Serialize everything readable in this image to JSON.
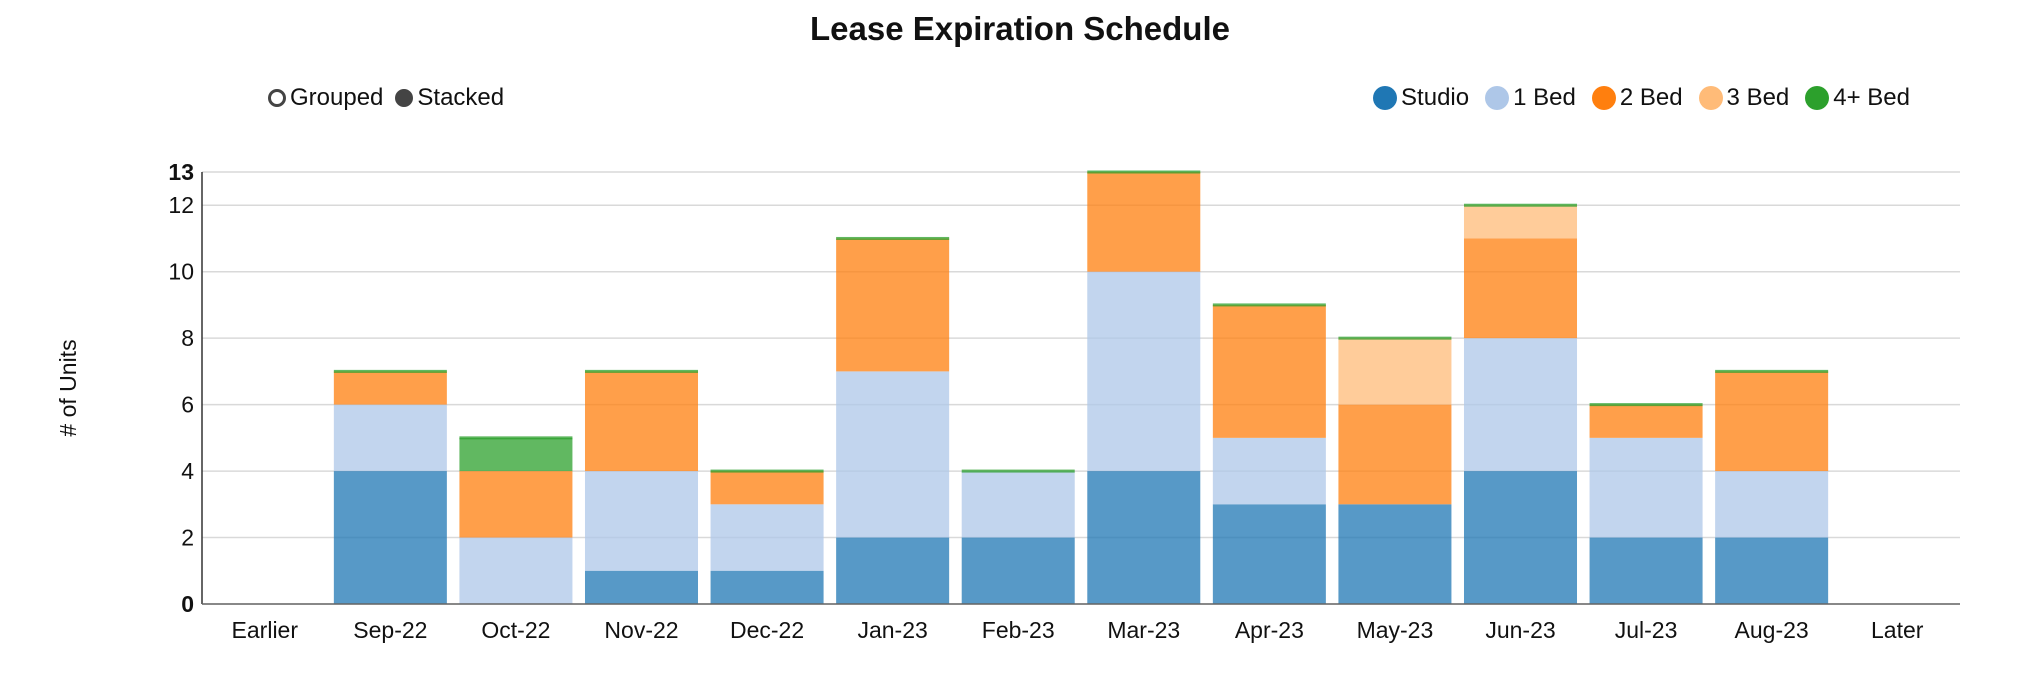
{
  "chart_data": {
    "type": "bar",
    "stacked": true,
    "title": "Lease Expiration Schedule",
    "xlabel": "",
    "ylabel": "# of Units",
    "ylim": [
      0,
      13
    ],
    "yticks": [
      0,
      2,
      4,
      6,
      8,
      10,
      12,
      13
    ],
    "grid": true,
    "legend_position": "top-right",
    "categories": [
      "Earlier",
      "Sep-22",
      "Oct-22",
      "Nov-22",
      "Dec-22",
      "Jan-23",
      "Feb-23",
      "Mar-23",
      "Apr-23",
      "May-23",
      "Jun-23",
      "Jul-23",
      "Aug-23",
      "Later"
    ],
    "series": [
      {
        "name": "Studio",
        "color": "#1f77b4",
        "values": [
          0,
          4,
          0,
          1,
          1,
          2,
          2,
          4,
          3,
          3,
          4,
          2,
          2,
          0
        ]
      },
      {
        "name": "1 Bed",
        "color": "#aec7e8",
        "values": [
          0,
          2,
          2,
          3,
          2,
          5,
          2,
          6,
          2,
          0,
          4,
          3,
          2,
          0
        ]
      },
      {
        "name": "2 Bed",
        "color": "#ff7f0e",
        "values": [
          0,
          1,
          2,
          3,
          1,
          4,
          0,
          3,
          4,
          3,
          3,
          1,
          3,
          0
        ]
      },
      {
        "name": "3 Bed",
        "color": "#ffbb78",
        "values": [
          0,
          0,
          0,
          0,
          0,
          0,
          0,
          0,
          0,
          2,
          1,
          0,
          0,
          0
        ]
      },
      {
        "name": "4+ Bed",
        "color": "#2ca02c",
        "values": [
          0,
          0,
          1,
          0,
          0,
          0,
          0,
          0,
          0,
          0,
          0,
          0,
          0,
          0
        ]
      }
    ]
  },
  "controls": {
    "grouped_label": "Grouped",
    "stacked_label": "Stacked",
    "selected": "Stacked"
  }
}
